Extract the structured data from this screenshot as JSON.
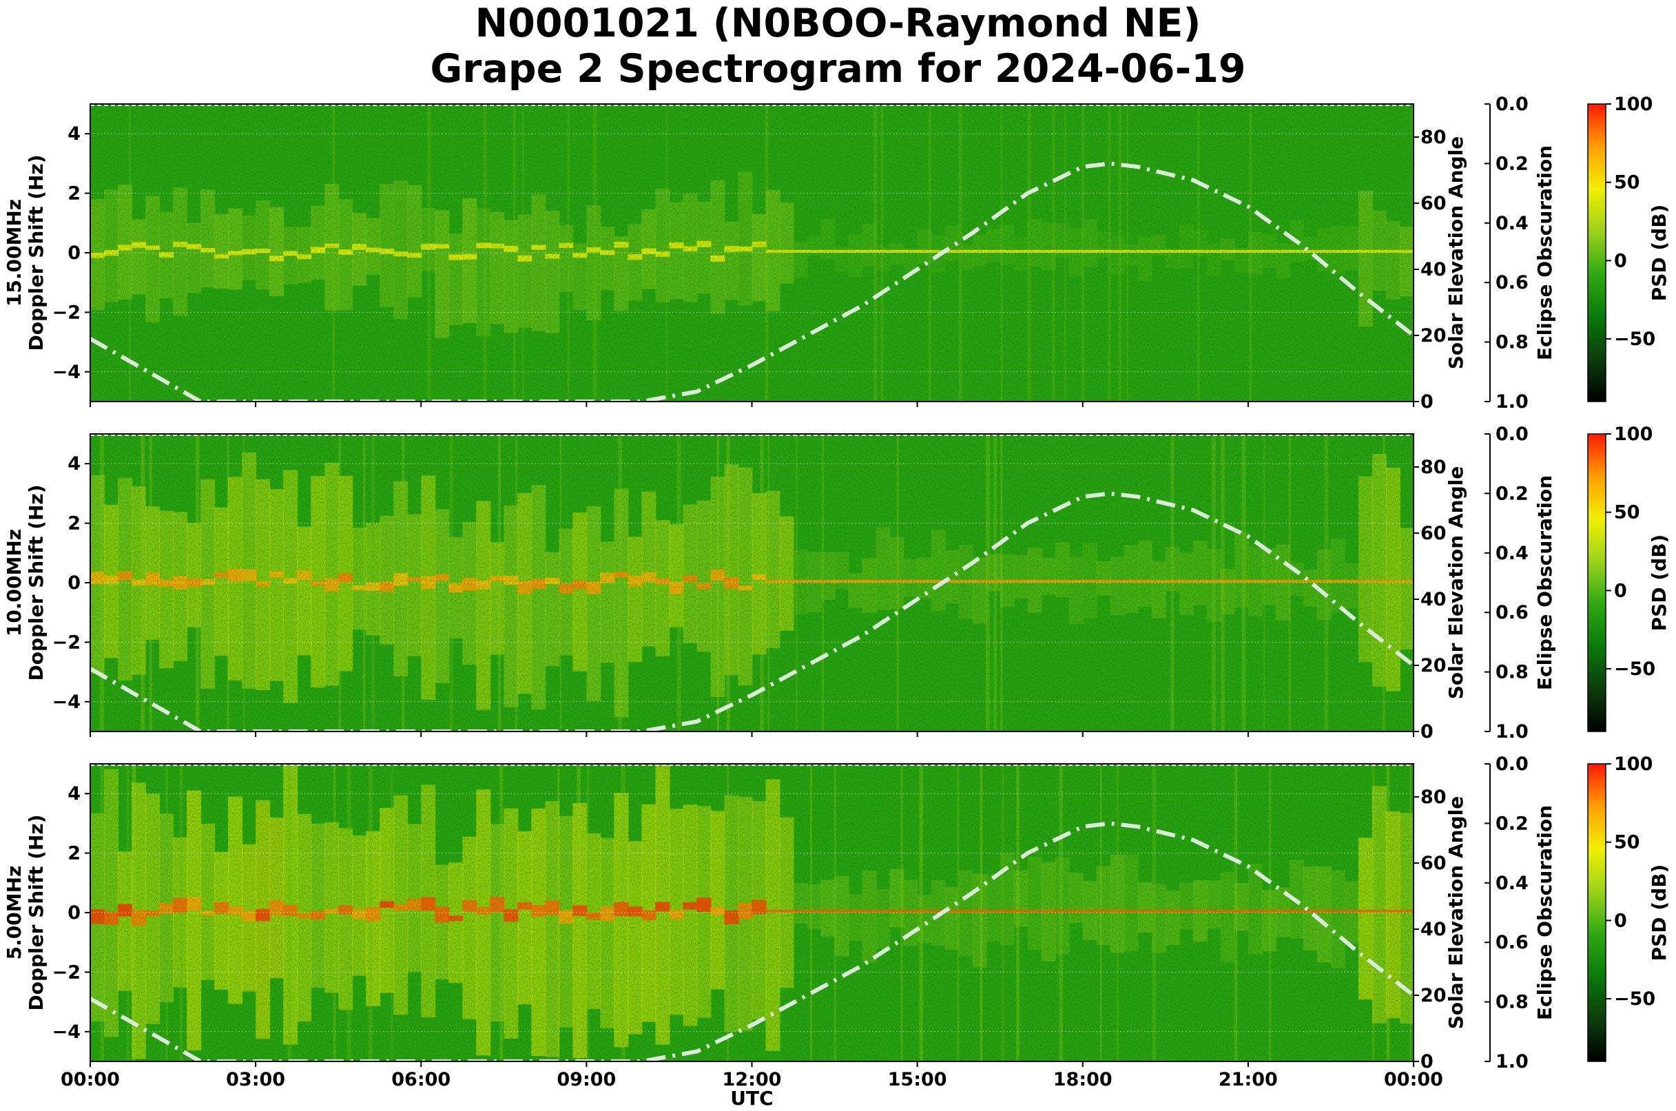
{
  "title_line1": "N0001021 (N0BOO-Raymond NE)",
  "title_line2": "Grape 2 Spectrogram for 2024-06-19",
  "chart_data": {
    "type": "heatmap",
    "xlabel": "UTC",
    "x_ticks": [
      "00:00",
      "03:00",
      "06:00",
      "09:00",
      "12:00",
      "15:00",
      "18:00",
      "21:00",
      "00:00"
    ],
    "x_range_hours": [
      0,
      24
    ],
    "ylabel_doppler": "Doppler Shift (Hz)",
    "doppler_range": [
      -5,
      5
    ],
    "doppler_ticks": [
      4,
      2,
      0,
      -2,
      -4
    ],
    "doppler_tick_labels": [
      "4",
      "2",
      "0",
      "−2",
      "−4"
    ],
    "ylabel_elevation": "Solar Elevation Angle",
    "elevation_range": [
      0,
      90
    ],
    "elevation_ticks": [
      0,
      20,
      40,
      60,
      80
    ],
    "ylabel_eclipse": "Eclipse Obscuration",
    "eclipse_range": [
      0.0,
      1.0
    ],
    "eclipse_tick_labels": [
      "0.0",
      "0.2",
      "0.4",
      "0.6",
      "0.8",
      "1.0"
    ],
    "colorbar_label": "PSD (dB)",
    "colorbar_range": [
      -90,
      100
    ],
    "colorbar_tick_values": [
      100,
      50,
      0,
      -50
    ],
    "colorbar_tick_labels": [
      "100",
      "50",
      "0",
      "−50"
    ],
    "colormap": [
      "#000000",
      "#0b3d0b",
      "#0a7a0a",
      "#2fa812",
      "#9ad21c",
      "#f0f000",
      "#ffa000",
      "#ff1a00"
    ],
    "solar_elevation": {
      "style": "dash-dot",
      "color": "#d8ecd8",
      "hours": [
        0,
        2,
        4,
        6,
        8,
        10,
        11,
        12,
        14,
        16,
        17,
        18,
        18.5,
        19,
        20,
        21,
        22,
        23,
        24
      ],
      "degrees": [
        19,
        0,
        0,
        0,
        0,
        0,
        3,
        11,
        29,
        51,
        63,
        71,
        72,
        71,
        67,
        59,
        47,
        33,
        20
      ]
    },
    "panels": [
      {
        "frequency_label": "15.00MHz",
        "carrier_intensity": 0.18
      },
      {
        "frequency_label": "10.00MHz",
        "carrier_intensity": 0.75
      },
      {
        "frequency_label": "5.00MHz",
        "carrier_intensity": 1.0
      }
    ]
  }
}
